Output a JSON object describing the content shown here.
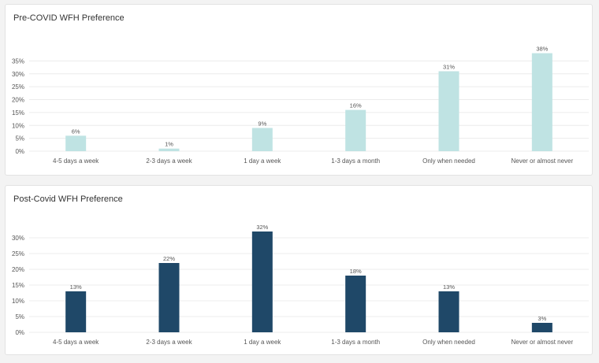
{
  "chart_data": [
    {
      "type": "bar",
      "title": "Pre-COVID WFH Preference",
      "categories": [
        "4-5 days a week",
        "2-3 days a week",
        "1 day a week",
        "1-3 days a month",
        "Only when needed",
        "Never or almost never"
      ],
      "values": [
        6,
        1,
        9,
        16,
        31,
        38
      ],
      "data_labels": [
        "6%",
        "1%",
        "9%",
        "16%",
        "31%",
        "38%"
      ],
      "y_ticks": [
        0,
        5,
        10,
        15,
        20,
        25,
        30,
        35
      ],
      "y_tick_labels": [
        "0%",
        "5%",
        "10%",
        "15%",
        "20%",
        "25%",
        "30%",
        "35%"
      ],
      "ylim": [
        0,
        40
      ],
      "color": "#bfe3e3",
      "grid": true,
      "legend": "none"
    },
    {
      "type": "bar",
      "title": "Post-Covid WFH Preference",
      "categories": [
        "4-5 days a week",
        "2-3 days a week",
        "1 day a week",
        "1-3 days a month",
        "Only when needed",
        "Never or almost never"
      ],
      "values": [
        13,
        22,
        32,
        18,
        13,
        3
      ],
      "data_labels": [
        "13%",
        "22%",
        "32%",
        "18%",
        "13%",
        "3%"
      ],
      "y_ticks": [
        0,
        5,
        10,
        15,
        20,
        25,
        30
      ],
      "y_tick_labels": [
        "0%",
        "5%",
        "10%",
        "15%",
        "20%",
        "25%",
        "30%"
      ],
      "ylim": [
        0,
        33
      ],
      "color": "#1f4868",
      "grid": true,
      "legend": "none"
    }
  ]
}
